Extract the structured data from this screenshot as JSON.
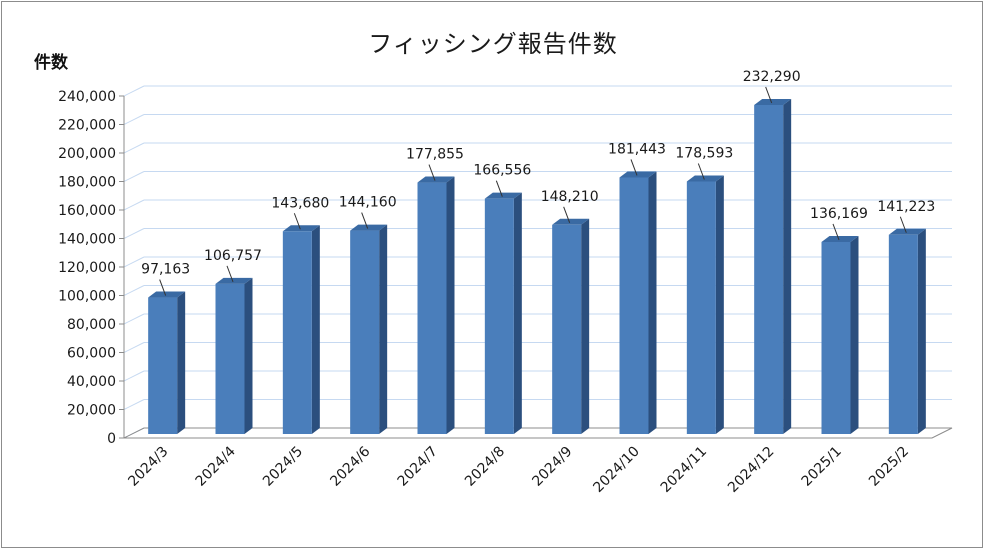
{
  "chart_data": {
    "type": "bar",
    "title": "フィッシング報告件数",
    "xlabel": "",
    "ylabel": "件数",
    "categories": [
      "2024/3",
      "2024/4",
      "2024/5",
      "2024/6",
      "2024/7",
      "2024/8",
      "2024/9",
      "2024/10",
      "2024/11",
      "2024/12",
      "2025/1",
      "2025/2"
    ],
    "values": [
      97163,
      106757,
      143680,
      144160,
      177855,
      166556,
      148210,
      181443,
      178593,
      232290,
      136169,
      141223
    ],
    "data_labels": [
      "97,163",
      "106,757",
      "143,680",
      "144,160",
      "177,855",
      "166,556",
      "148,210",
      "181,443",
      "178,593",
      "232,290",
      "136,169",
      "141,223"
    ],
    "ylim": [
      0,
      240000
    ],
    "yticks": [
      0,
      20000,
      40000,
      60000,
      80000,
      100000,
      120000,
      140000,
      160000,
      180000,
      200000,
      220000,
      240000
    ],
    "ytick_labels": [
      "0",
      "20,000",
      "40,000",
      "60,000",
      "80,000",
      "100,000",
      "120,000",
      "140,000",
      "160,000",
      "180,000",
      "200,000",
      "220,000",
      "240,000"
    ],
    "grid": true,
    "legend": "none",
    "style": "3d-column",
    "colors": {
      "bar_front": "#4a7ebb",
      "bar_side": "#2b4f7e",
      "bar_top": "#3a6aa3",
      "gridline": "#c6d9f1",
      "wall": "#8c8c8c"
    }
  }
}
